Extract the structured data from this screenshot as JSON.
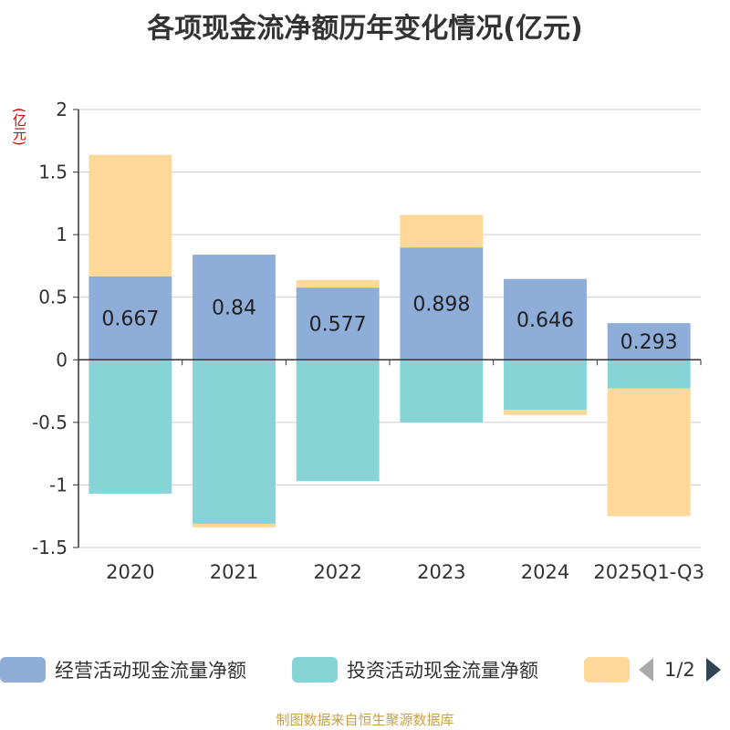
{
  "chart_data": {
    "type": "bar",
    "stacked": true,
    "title": "各项现金流净额历年变化情况(亿元)",
    "unit_label": "(亿元)",
    "categories": [
      "2020",
      "2021",
      "2022",
      "2023",
      "2024",
      "2025Q1-Q3"
    ],
    "series": [
      {
        "name": "经营活动现金流量净额",
        "color": "#8eadd9",
        "values": [
          0.667,
          0.84,
          0.577,
          0.898,
          0.646,
          0.293
        ]
      },
      {
        "name": "投资活动现金流量净额",
        "color": "#87d4d6",
        "values": [
          -1.07,
          -1.31,
          -0.97,
          -0.5,
          -0.4,
          -0.23
        ]
      },
      {
        "name": "",
        "color": "#fdd898",
        "values": [
          0.97,
          -0.03,
          0.06,
          0.26,
          -0.04,
          -1.02
        ]
      }
    ],
    "data_labels": [
      "0.667",
      "0.84",
      "0.577",
      "0.898",
      "0.646",
      "0.293"
    ],
    "y_ticks": [
      "2",
      "1.5",
      "1",
      "0.5",
      "0",
      "-0.5",
      "-1",
      "-1.5"
    ],
    "ylim": [
      -1.5,
      2
    ],
    "grid": true,
    "legend_position": "bottom"
  },
  "legend": {
    "page": "1/2"
  },
  "source": "制图数据来自恒生聚源数据库"
}
